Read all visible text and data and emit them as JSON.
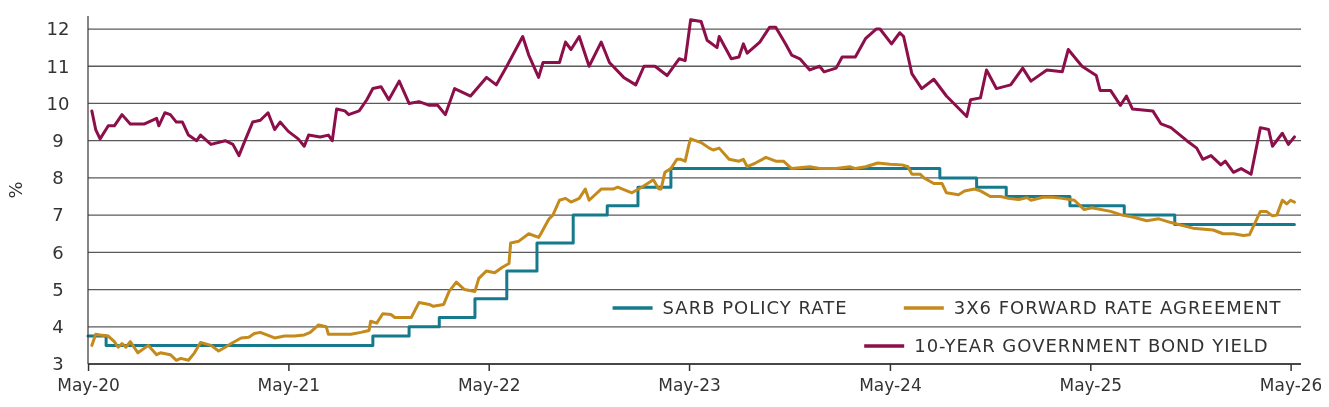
{
  "chart_data": {
    "type": "line",
    "ylabel": "%",
    "xlim": [
      "2020-04-30",
      "2026-05-19"
    ],
    "xticks": [
      {
        "value": "2020-05-01",
        "label": "May-20"
      },
      {
        "value": "2021-05-01",
        "label": "May-21"
      },
      {
        "value": "2022-05-01",
        "label": "May-22"
      },
      {
        "value": "2023-05-01",
        "label": "May-23"
      },
      {
        "value": "2024-05-01",
        "label": "May-24"
      },
      {
        "value": "2025-05-01",
        "label": "May-25"
      },
      {
        "value": "2026-05-01",
        "label": "May-26"
      }
    ],
    "ylim": [
      3,
      12.35
    ],
    "yticks": [
      3,
      4,
      5,
      6,
      7,
      8,
      9,
      10,
      11,
      12
    ],
    "grid": "y",
    "legend": "bottom right",
    "line_style": "solid",
    "marker": "none",
    "series": [
      {
        "name": "SARB POLICY RATE",
        "type": "step",
        "color": "#157a8c",
        "x": [
          "2020-04-30",
          "2020-06-02",
          "2021-10-01",
          "2021-12-06",
          "2022-01-30",
          "2022-04-05",
          "2022-06-02",
          "2022-07-27",
          "2022-10-01",
          "2022-12-02",
          "2023-01-27",
          "2023-03-28",
          "2024-07-30",
          "2024-10-05",
          "2024-11-28",
          "2025-03-24",
          "2025-07-01",
          "2025-10-01",
          "2026-05-07"
        ],
        "values": [
          3.75,
          3.5,
          3.75,
          4.0,
          4.25,
          4.75,
          5.5,
          6.25,
          7.0,
          7.25,
          7.75,
          8.25,
          8.0,
          7.75,
          7.5,
          7.25,
          7.0,
          6.75,
          6.75
        ]
      },
      {
        "name": "3X6 FORWARD RATE AGREEMENT",
        "color": "#c48a1c",
        "x": [
          "2020-05-07",
          "2020-05-14",
          "2020-05-22",
          "2020-06-06",
          "2020-06-17",
          "2020-06-24",
          "2020-07-01",
          "2020-07-08",
          "2020-07-16",
          "2020-07-30",
          "2020-08-18",
          "2020-09-02",
          "2020-09-09",
          "2020-09-27",
          "2020-10-08",
          "2020-10-16",
          "2020-10-30",
          "2020-11-10",
          "2020-11-21",
          "2020-12-10",
          "2020-12-24",
          "2021-01-05",
          "2021-01-16",
          "2021-02-03",
          "2021-02-17",
          "2021-02-27",
          "2021-03-10",
          "2021-04-05",
          "2021-04-23",
          "2021-05-11",
          "2021-05-29",
          "2021-06-09",
          "2021-06-24",
          "2021-07-08",
          "2021-07-12",
          "2021-08-22",
          "2021-09-09",
          "2021-09-24",
          "2021-09-27",
          "2021-10-08",
          "2021-10-19",
          "2021-11-03",
          "2021-11-10",
          "2021-12-10",
          "2021-12-24",
          "2022-01-12",
          "2022-01-19",
          "2022-02-07",
          "2022-02-17",
          "2022-03-02",
          "2022-03-17",
          "2022-04-05",
          "2022-04-12",
          "2022-04-26",
          "2022-05-11",
          "2022-05-25",
          "2022-06-06",
          "2022-06-09",
          "2022-06-24",
          "2022-07-12",
          "2022-07-30",
          "2022-08-03",
          "2022-08-18",
          "2022-08-25",
          "2022-09-06",
          "2022-09-17",
          "2022-09-27",
          "2022-10-12",
          "2022-10-23",
          "2022-10-30",
          "2022-11-21",
          "2022-12-13",
          "2022-12-21",
          "2023-01-16",
          "2023-02-03",
          "2023-02-24",
          "2023-03-06",
          "2023-03-10",
          "2023-03-17",
          "2023-03-28",
          "2023-04-08",
          "2023-04-15",
          "2023-04-23",
          "2023-04-30",
          "2023-05-03",
          "2023-05-22",
          "2023-06-06",
          "2023-06-13",
          "2023-06-24",
          "2023-07-12",
          "2023-07-30",
          "2023-08-07",
          "2023-08-14",
          "2023-08-29",
          "2023-09-17",
          "2023-10-05",
          "2023-10-19",
          "2023-11-03",
          "2023-12-06",
          "2023-12-24",
          "2024-01-23",
          "2024-02-17",
          "2024-02-27",
          "2024-03-17",
          "2024-04-08",
          "2024-04-30",
          "2024-05-22",
          "2024-06-02",
          "2024-06-09",
          "2024-06-24",
          "2024-07-01",
          "2024-07-19",
          "2024-08-03",
          "2024-08-11",
          "2024-09-02",
          "2024-09-13",
          "2024-10-01",
          "2024-10-12",
          "2024-10-30",
          "2024-11-18",
          "2024-12-02",
          "2024-12-21",
          "2025-01-05",
          "2025-01-12",
          "2025-02-03",
          "2025-02-21",
          "2025-03-10",
          "2025-04-01",
          "2025-04-19",
          "2025-05-03",
          "2025-06-06",
          "2025-06-27",
          "2025-07-16",
          "2025-08-11",
          "2025-09-02",
          "2025-09-24",
          "2025-11-03",
          "2025-12-10",
          "2025-12-28",
          "2026-01-16",
          "2026-02-03",
          "2026-02-14",
          "2026-03-06",
          "2026-03-17",
          "2026-03-28",
          "2026-04-05",
          "2026-04-15",
          "2026-04-23",
          "2026-04-30",
          "2026-05-07"
        ],
        "values": [
          3.5,
          3.8,
          3.78,
          3.75,
          3.6,
          3.45,
          3.55,
          3.45,
          3.6,
          3.3,
          3.5,
          3.25,
          3.3,
          3.25,
          3.1,
          3.15,
          3.1,
          3.3,
          3.58,
          3.5,
          3.35,
          3.45,
          3.55,
          3.7,
          3.72,
          3.82,
          3.85,
          3.7,
          3.75,
          3.75,
          3.78,
          3.85,
          4.05,
          4.0,
          3.8,
          3.8,
          3.85,
          3.9,
          4.15,
          4.1,
          4.35,
          4.33,
          4.25,
          4.25,
          4.65,
          4.6,
          4.55,
          4.6,
          4.95,
          5.2,
          5.0,
          4.95,
          5.3,
          5.5,
          5.45,
          5.6,
          5.7,
          6.25,
          6.3,
          6.5,
          6.4,
          6.5,
          6.9,
          7.0,
          7.4,
          7.45,
          7.35,
          7.45,
          7.7,
          7.4,
          7.7,
          7.7,
          7.75,
          7.6,
          7.75,
          7.95,
          7.7,
          7.7,
          8.15,
          8.25,
          8.5,
          8.5,
          8.45,
          8.9,
          9.05,
          8.95,
          8.8,
          8.75,
          8.8,
          8.5,
          8.45,
          8.5,
          8.3,
          8.4,
          8.55,
          8.45,
          8.45,
          8.25,
          8.3,
          8.25,
          8.25,
          8.3,
          8.25,
          8.3,
          8.4,
          8.37,
          8.35,
          8.3,
          8.1,
          8.1,
          8.0,
          7.85,
          7.85,
          7.6,
          7.55,
          7.65,
          7.7,
          7.65,
          7.5,
          7.5,
          7.45,
          7.42,
          7.47,
          7.4,
          7.48,
          7.48,
          7.45,
          7.4,
          7.15,
          7.2,
          7.1,
          7.0,
          6.95,
          6.85,
          6.9,
          6.8,
          6.65,
          6.6,
          6.5,
          6.5,
          6.45,
          6.47,
          7.1,
          7.1,
          6.98,
          7.0,
          7.4,
          7.3,
          7.4,
          7.35
        ]
      },
      {
        "name": "10-YEAR GOVERNMENT BOND YIELD",
        "color": "#8c0f4a",
        "x": [
          "2020-05-07",
          "2020-05-14",
          "2020-05-22",
          "2020-06-06",
          "2020-06-17",
          "2020-07-01",
          "2020-07-16",
          "2020-07-30",
          "2020-08-11",
          "2020-09-02",
          "2020-09-06",
          "2020-09-17",
          "2020-09-27",
          "2020-10-08",
          "2020-10-19",
          "2020-10-30",
          "2020-11-14",
          "2020-11-21",
          "2020-12-10",
          "2021-01-05",
          "2021-01-19",
          "2021-01-30",
          "2021-02-10",
          "2021-02-24",
          "2021-03-10",
          "2021-03-24",
          "2021-04-05",
          "2021-04-15",
          "2021-04-30",
          "2021-05-18",
          "2021-05-29",
          "2021-06-06",
          "2021-06-27",
          "2021-07-12",
          "2021-07-19",
          "2021-07-27",
          "2021-08-11",
          "2021-08-18",
          "2021-09-06",
          "2021-09-20",
          "2021-10-01",
          "2021-10-16",
          "2021-10-30",
          "2021-11-18",
          "2021-12-06",
          "2021-12-24",
          "2022-01-12",
          "2022-01-27",
          "2022-02-10",
          "2022-02-27",
          "2022-03-28",
          "2022-04-26",
          "2022-05-14",
          "2022-06-02",
          "2022-07-01",
          "2022-07-12",
          "2022-07-30",
          "2022-08-07",
          "2022-09-06",
          "2022-09-17",
          "2022-09-27",
          "2022-10-12",
          "2022-10-30",
          "2022-11-21",
          "2022-12-06",
          "2023-01-01",
          "2023-01-23",
          "2023-02-07",
          "2023-02-27",
          "2023-03-21",
          "2023-04-12",
          "2023-04-23",
          "2023-05-03",
          "2023-05-22",
          "2023-06-02",
          "2023-06-20",
          "2023-06-24",
          "2023-07-16",
          "2023-07-30",
          "2023-08-07",
          "2023-08-14",
          "2023-09-06",
          "2023-09-24",
          "2023-10-05",
          "2023-10-23",
          "2023-11-03",
          "2023-11-18",
          "2023-12-06",
          "2023-12-24",
          "2024-01-01",
          "2024-01-23",
          "2024-02-03",
          "2024-02-27",
          "2024-03-17",
          "2024-04-05",
          "2024-04-12",
          "2024-05-03",
          "2024-05-18",
          "2024-05-25",
          "2024-06-09",
          "2024-06-27",
          "2024-07-19",
          "2024-08-11",
          "2024-09-17",
          "2024-09-24",
          "2024-10-12",
          "2024-10-23",
          "2024-11-10",
          "2024-12-06",
          "2024-12-28",
          "2025-01-12",
          "2025-02-10",
          "2025-03-10",
          "2025-03-21",
          "2025-04-15",
          "2025-05-11",
          "2025-05-18",
          "2025-06-06",
          "2025-06-24",
          "2025-07-05",
          "2025-07-16",
          "2025-08-22",
          "2025-09-06",
          "2025-09-24",
          "2025-10-23",
          "2025-11-10",
          "2025-11-21",
          "2025-12-06",
          "2025-12-24",
          "2026-01-01",
          "2026-01-16",
          "2026-01-30",
          "2026-02-17",
          "2026-03-06",
          "2026-03-21",
          "2026-03-28",
          "2026-04-15",
          "2026-04-26",
          "2026-05-07"
        ],
        "values": [
          9.8,
          9.3,
          9.05,
          9.4,
          9.4,
          9.7,
          9.45,
          9.45,
          9.45,
          9.6,
          9.4,
          9.75,
          9.7,
          9.5,
          9.5,
          9.15,
          9.0,
          9.15,
          8.9,
          9.0,
          8.9,
          8.6,
          9.0,
          9.5,
          9.55,
          9.75,
          9.3,
          9.5,
          9.25,
          9.05,
          8.85,
          9.15,
          9.1,
          9.15,
          9.0,
          9.85,
          9.8,
          9.7,
          9.8,
          10.1,
          10.4,
          10.45,
          10.1,
          10.6,
          10.0,
          10.05,
          9.95,
          9.95,
          9.7,
          10.4,
          10.2,
          10.7,
          10.5,
          11.0,
          11.8,
          11.3,
          10.7,
          11.1,
          11.1,
          11.65,
          11.45,
          11.8,
          11.0,
          11.65,
          11.1,
          10.7,
          10.5,
          11.0,
          11.0,
          10.75,
          11.2,
          11.15,
          12.25,
          12.2,
          11.7,
          11.5,
          11.8,
          11.2,
          11.25,
          11.6,
          11.35,
          11.65,
          12.05,
          12.05,
          11.6,
          11.3,
          11.2,
          10.9,
          11.0,
          10.85,
          10.95,
          11.25,
          11.25,
          11.75,
          12.0,
          12.0,
          11.6,
          11.9,
          11.8,
          10.8,
          10.4,
          10.65,
          10.2,
          9.65,
          10.1,
          10.15,
          10.9,
          10.4,
          10.5,
          10.95,
          10.6,
          10.9,
          10.85,
          11.45,
          11.0,
          10.75,
          10.35,
          10.35,
          9.95,
          10.2,
          9.85,
          9.8,
          9.45,
          9.35,
          9.0,
          8.8,
          8.5,
          8.6,
          8.35,
          8.45,
          8.15,
          8.25,
          8.1,
          9.35,
          9.3,
          8.85,
          9.2,
          8.9,
          9.1
        ]
      }
    ]
  }
}
